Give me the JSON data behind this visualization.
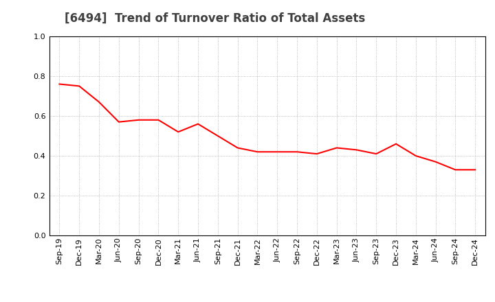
{
  "title": "[6494]  Trend of Turnover Ratio of Total Assets",
  "x_labels": [
    "Sep-19",
    "Dec-19",
    "Mar-20",
    "Jun-20",
    "Sep-20",
    "Dec-20",
    "Mar-21",
    "Jun-21",
    "Sep-21",
    "Dec-21",
    "Mar-22",
    "Jun-22",
    "Sep-22",
    "Dec-22",
    "Mar-23",
    "Jun-23",
    "Sep-23",
    "Dec-23",
    "Mar-24",
    "Jun-24",
    "Sep-24",
    "Dec-24"
  ],
  "y_values": [
    0.76,
    0.75,
    0.67,
    0.57,
    0.58,
    0.58,
    0.52,
    0.56,
    0.5,
    0.44,
    0.42,
    0.42,
    0.42,
    0.41,
    0.44,
    0.43,
    0.41,
    0.46,
    0.4,
    0.37,
    0.33,
    0.33
  ],
  "line_color": "#ff0000",
  "line_width": 1.5,
  "ylim": [
    0.0,
    1.0
  ],
  "yticks": [
    0.0,
    0.2,
    0.4,
    0.6,
    0.8,
    1.0
  ],
  "grid_color": "#aaaaaa",
  "background_color": "#ffffff",
  "title_fontsize": 12,
  "tick_fontsize": 8.0,
  "title_color": "#404040"
}
